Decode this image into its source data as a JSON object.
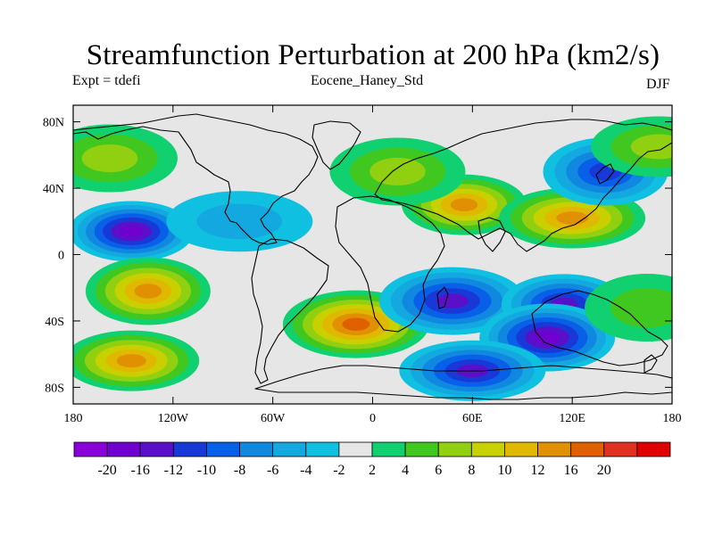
{
  "title": "Streamfunction Perturbation at 200 hPa (km2/s)",
  "left_subtitle": "Expt = tdefi",
  "center_subtitle": "Eocene_Haney_Std",
  "right_subtitle": "DJF",
  "map": {
    "lon_range": [
      -180,
      180
    ],
    "lat_range": [
      -90,
      90
    ],
    "lon_ticks": [
      {
        "value": -180,
        "label": "180"
      },
      {
        "value": -120,
        "label": "120W"
      },
      {
        "value": -60,
        "label": "60W"
      },
      {
        "value": 0,
        "label": "0"
      },
      {
        "value": 60,
        "label": "60E"
      },
      {
        "value": 120,
        "label": "120E"
      },
      {
        "value": 180,
        "label": "180"
      }
    ],
    "lat_ticks": [
      {
        "value": 80,
        "label": "80N"
      },
      {
        "value": 40,
        "label": "40N"
      },
      {
        "value": 0,
        "label": "0"
      },
      {
        "value": -40,
        "label": "40S"
      },
      {
        "value": -80,
        "label": "80S"
      }
    ],
    "background_color": "#e6e6e6",
    "field_features": [
      {
        "lon": -145,
        "lat": 14,
        "value": -16
      },
      {
        "lon": -158,
        "lat": 58,
        "value": 6
      },
      {
        "lon": -80,
        "lat": 20,
        "value": -5
      },
      {
        "lon": -135,
        "lat": -22,
        "value": 14
      },
      {
        "lon": -145,
        "lat": -64,
        "value": 14
      },
      {
        "lon": -10,
        "lat": -42,
        "value": 16
      },
      {
        "lon": 55,
        "lat": 30,
        "value": 12
      },
      {
        "lon": 15,
        "lat": 50,
        "value": 6
      },
      {
        "lon": 120,
        "lat": 22,
        "value": 14
      },
      {
        "lon": 140,
        "lat": 50,
        "value": -10
      },
      {
        "lon": 172,
        "lat": 65,
        "value": 6
      },
      {
        "lon": 48,
        "lat": -28,
        "value": -12
      },
      {
        "lon": 115,
        "lat": -30,
        "value": -12
      },
      {
        "lon": 105,
        "lat": -50,
        "value": -16
      },
      {
        "lon": 60,
        "lat": -70,
        "value": -12
      },
      {
        "lon": 165,
        "lat": -32,
        "value": 4
      }
    ]
  },
  "colorbar": {
    "colors": [
      "#8a00d8",
      "#7000d0",
      "#5a10c8",
      "#1838d8",
      "#0860e8",
      "#1088e0",
      "#14a8e0",
      "#10c0e0",
      "#e6e6e6",
      "#10d070",
      "#40c820",
      "#90d010",
      "#c8d000",
      "#e0b800",
      "#e09000",
      "#e06000",
      "#e03020",
      "#e00000"
    ],
    "labels": [
      "-20",
      "-16",
      "-12",
      "-10",
      "-8",
      "-6",
      "-4",
      "-2",
      "2",
      "4",
      "6",
      "8",
      "10",
      "12",
      "16",
      "20"
    ],
    "levels": [
      -20,
      -16,
      -12,
      -10,
      -8,
      -6,
      -4,
      -2,
      2,
      4,
      6,
      8,
      10,
      12,
      16,
      20
    ]
  }
}
